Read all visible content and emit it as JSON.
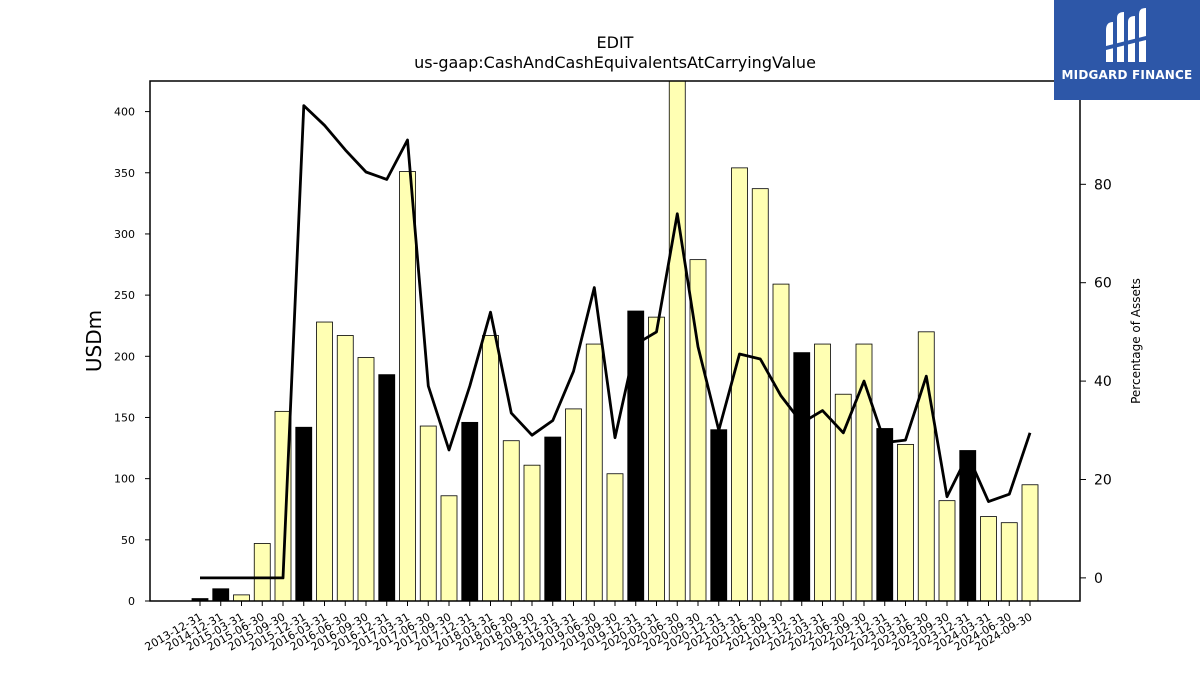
{
  "chart_data": {
    "type": "bar",
    "title": "EDIT",
    "subtitle": "us-gaap:CashAndCashEquivalentsAtCarryingValue",
    "ylabel": "USDm",
    "y2label": "Percentage of Assets",
    "ylim": [
      0,
      425
    ],
    "y2lim": [
      -4.7,
      101
    ],
    "yticks": [
      0,
      50,
      100,
      150,
      200,
      250,
      300,
      350,
      400
    ],
    "y2ticks": [
      0,
      20,
      40,
      60,
      80
    ],
    "grid": false,
    "categories": [
      "2013-12-31",
      "2014-12-31",
      "2015-03-31",
      "2015-06-30",
      "2015-09-30",
      "2015-12-31",
      "2016-03-31",
      "2016-06-30",
      "2016-09-30",
      "2016-12-31",
      "2017-03-31",
      "2017-06-30",
      "2017-09-30",
      "2017-12-31",
      "2018-03-31",
      "2018-06-30",
      "2018-09-30",
      "2018-12-31",
      "2019-03-31",
      "2019-06-30",
      "2019-09-30",
      "2019-12-31",
      "2020-03-31",
      "2020-06-30",
      "2020-09-30",
      "2020-12-31",
      "2021-03-31",
      "2021-06-30",
      "2021-09-30",
      "2021-12-31",
      "2022-03-31",
      "2022-06-30",
      "2022-09-30",
      "2022-12-31",
      "2023-03-31",
      "2023-06-30",
      "2023-09-30",
      "2023-12-31",
      "2024-03-31",
      "2024-06-30",
      "2024-09-30"
    ],
    "series": [
      {
        "type": "bar",
        "values": [
          2,
          10,
          5,
          47,
          155,
          142,
          228,
          217,
          199,
          185,
          351,
          143,
          86,
          146,
          217,
          131,
          111,
          134,
          157,
          210,
          104,
          237,
          232,
          425,
          279,
          140,
          354,
          337,
          259,
          203,
          210,
          169,
          210,
          141,
          128,
          220,
          82,
          123,
          69,
          64,
          95
        ],
        "highlight": [
          true,
          true,
          false,
          false,
          false,
          true,
          false,
          false,
          false,
          true,
          false,
          false,
          false,
          true,
          false,
          false,
          false,
          true,
          false,
          false,
          false,
          true,
          false,
          false,
          false,
          true,
          false,
          false,
          false,
          true,
          false,
          false,
          false,
          true,
          false,
          false,
          false,
          true,
          false,
          false,
          false
        ],
        "color": "#ffffb3",
        "highlight_color": "#000000"
      },
      {
        "type": "line",
        "axis": "right",
        "values": [
          0,
          0,
          0,
          0,
          0,
          96,
          92,
          87,
          82.5,
          81,
          89,
          39,
          26,
          39,
          54,
          33.5,
          29,
          32,
          42,
          59,
          28.5,
          47.5,
          50,
          74,
          47,
          30,
          45.5,
          44.5,
          37,
          31.5,
          34,
          29.5,
          40,
          27.5,
          28,
          41,
          16.5,
          25,
          15.5,
          17,
          29.5
        ],
        "color": "#000000"
      }
    ]
  },
  "logo": {
    "text": "MIDGARD FINANCE",
    "bg_color": "#2d57a8"
  }
}
